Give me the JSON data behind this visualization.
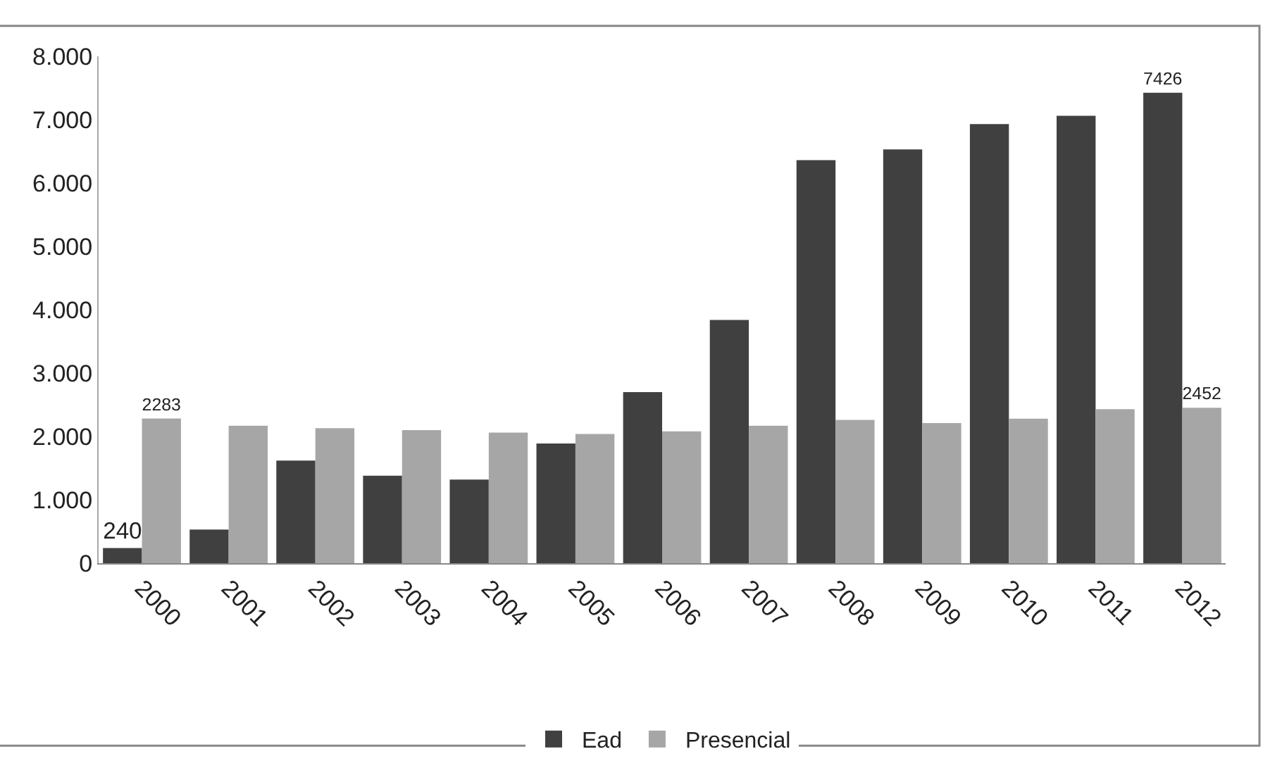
{
  "chart_data": {
    "type": "bar",
    "categories": [
      "2000",
      "2001",
      "2002",
      "2003",
      "2004",
      "2005",
      "2006",
      "2007",
      "2008",
      "2009",
      "2010",
      "2011",
      "2012"
    ],
    "series": [
      {
        "name": "Ead",
        "color": "#404040",
        "values": [
          240,
          530,
          1620,
          1380,
          1320,
          1890,
          2700,
          3840,
          6360,
          6530,
          6930,
          7060,
          7426
        ],
        "value_labels": [
          "240",
          null,
          null,
          null,
          null,
          null,
          null,
          null,
          null,
          null,
          null,
          null,
          "7426"
        ]
      },
      {
        "name": "Presencial",
        "color": "#a6a6a6",
        "values": [
          2283,
          2170,
          2130,
          2100,
          2060,
          2040,
          2080,
          2170,
          2260,
          2210,
          2280,
          2430,
          2452
        ],
        "value_labels": [
          "2283",
          null,
          null,
          null,
          null,
          null,
          null,
          null,
          null,
          null,
          null,
          null,
          "2452"
        ]
      }
    ],
    "ylim": [
      0,
      8000
    ],
    "yticks": [
      {
        "value": 0,
        "label": "0"
      },
      {
        "value": 1000,
        "label": "1.000"
      },
      {
        "value": 2000,
        "label": "2.000"
      },
      {
        "value": 3000,
        "label": "3.000"
      },
      {
        "value": 4000,
        "label": "4.000"
      },
      {
        "value": 5000,
        "label": "5.000"
      },
      {
        "value": 6000,
        "label": "6.000"
      },
      {
        "value": 7000,
        "label": "7.000"
      },
      {
        "value": 8000,
        "label": "8.000"
      }
    ],
    "grid": false,
    "legend": "bottom"
  }
}
